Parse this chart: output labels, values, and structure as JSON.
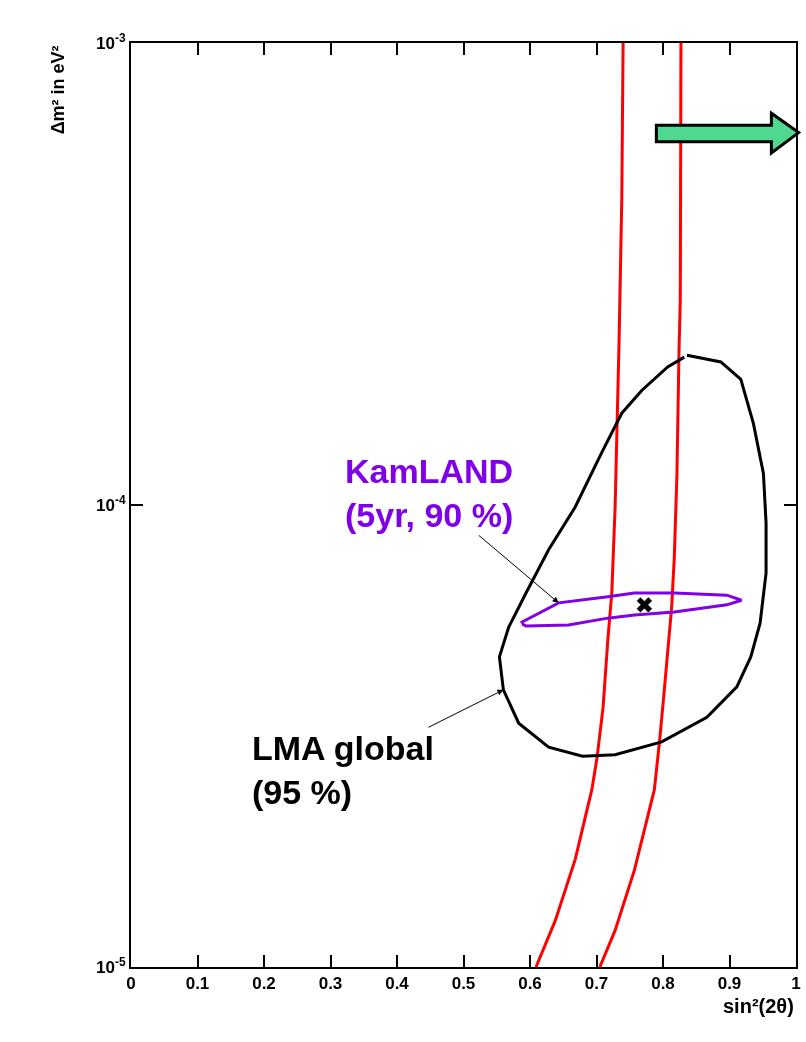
{
  "chart_data": {
    "type": "line",
    "xlabel": "sin²(2θ)",
    "ylabel": "Δm² in eV²",
    "log": "y",
    "marker": "none",
    "line_style": "solid",
    "xlim": [
      0,
      1
    ],
    "xticks": [
      0,
      0.1,
      0.2,
      0.3,
      0.4,
      0.5,
      0.6,
      0.7,
      0.8,
      0.9,
      1
    ],
    "ylim": [
      1e-05,
      0.001
    ],
    "yticks": [
      {
        "value": 1e-05,
        "label": "10$^{-5}$"
      },
      {
        "value": 0.0001,
        "label": "10$^{-4}$"
      },
      {
        "value": 0.001,
        "label": "10$^{-3}$"
      }
    ],
    "series": [
      {
        "color": "#ff0000",
        "x": [
          0.74,
          0.738,
          0.734,
          0.728,
          0.723,
          0.717,
          0.71,
          0.701,
          0.693,
          0.668,
          0.638,
          0.609
        ],
        "values": [
          0.001,
          0.000457,
          0.000228,
          9.9e-05,
          6.45e-05,
          5.1e-05,
          3.66e-05,
          2.85e-05,
          2.42e-05,
          1.71e-05,
          1.26e-05,
          1e-05
        ]
      },
      {
        "color": "#ff0000",
        "x": [
          0.827,
          0.826,
          0.824,
          0.821,
          0.817,
          0.813,
          0.802,
          0.795,
          0.787,
          0.757,
          0.728,
          0.705
        ],
        "values": [
          0.001,
          0.000278,
          0.000213,
          0.000117,
          7.7e-05,
          6e-05,
          3.98e-05,
          3.1e-05,
          2.42e-05,
          1.62e-05,
          1.2e-05,
          1e-05
        ]
      },
      {
        "color": "#000000",
        "x": [
          0.836,
          0.887,
          0.917,
          0.936,
          0.951,
          0.955,
          0.955,
          0.946,
          0.932,
          0.911,
          0.866,
          0.798,
          0.728,
          0.679,
          0.628,
          0.583,
          0.56,
          0.554,
          0.568,
          0.594,
          0.628,
          0.668,
          0.708,
          0.738,
          0.768,
          0.807,
          0.832
        ],
        "values": [
          0.000211,
          0.000204,
          0.000187,
          0.00015,
          0.000117,
          9.14e-05,
          7.13e-05,
          5.55e-05,
          4.69e-05,
          4.04e-05,
          3.47e-05,
          3.07e-05,
          2.88e-05,
          2.86e-05,
          2.99e-05,
          3.37e-05,
          3.98e-05,
          4.69e-05,
          5.44e-05,
          6.45e-05,
          8e-05,
          9.9e-05,
          0.00013,
          0.000158,
          0.000177,
          0.000199,
          0.000209
        ]
      },
      {
        "color": "#8000e8",
        "x": [
          0.586,
          0.643,
          0.717,
          0.757,
          0.817,
          0.896,
          0.918,
          0.896,
          0.817,
          0.757,
          0.717,
          0.658,
          0.594,
          0.588
        ],
        "values": [
          5.56e-05,
          6.14e-05,
          6.33e-05,
          6.45e-05,
          6.45e-05,
          6.38e-05,
          6.22e-05,
          6.08e-05,
          5.87e-05,
          5.78e-05,
          5.69e-05,
          5.5e-05,
          5.47e-05,
          5.53e-05
        ]
      },
      {
        "type": "scatter",
        "marker": "cross",
        "color": "#000000",
        "x": [
          0.772
        ],
        "values": [
          6.08e-05
        ]
      }
    ],
    "annotations": [
      {
        "text": "KamLAND\n(5yr, 90 %)",
        "x": 0.643,
        "y": 6.14e-05
      },
      {
        "text": "LMA global\n(95 %)",
        "x": 0.56,
        "y": 3.98e-05
      }
    ]
  }
}
